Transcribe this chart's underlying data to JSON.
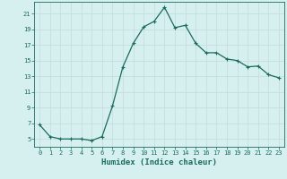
{
  "x": [
    0,
    1,
    2,
    3,
    4,
    5,
    6,
    7,
    8,
    9,
    10,
    11,
    12,
    13,
    14,
    15,
    16,
    17,
    18,
    19,
    20,
    21,
    22,
    23
  ],
  "y": [
    6.8,
    5.3,
    5.0,
    5.0,
    5.0,
    4.8,
    5.3,
    9.2,
    14.2,
    17.2,
    19.3,
    20.0,
    21.8,
    19.2,
    19.5,
    17.2,
    16.0,
    16.0,
    15.2,
    15.0,
    14.2,
    14.3,
    13.2,
    12.8
  ],
  "line_color": "#1a6b5a",
  "marker": "+",
  "marker_size": 3.0,
  "bg_color": "#d6f0f0",
  "grid_color": "#c8dede",
  "xlabel": "Humidex (Indice chaleur)",
  "ylabel_ticks": [
    5,
    7,
    9,
    11,
    13,
    15,
    17,
    19,
    21
  ],
  "xlim": [
    -0.5,
    23.5
  ],
  "ylim": [
    4.0,
    22.5
  ],
  "xticks": [
    0,
    1,
    2,
    3,
    4,
    5,
    6,
    7,
    8,
    9,
    10,
    11,
    12,
    13,
    14,
    15,
    16,
    17,
    18,
    19,
    20,
    21,
    22,
    23
  ],
  "xtick_labels": [
    "0",
    "1",
    "2",
    "3",
    "4",
    "5",
    "6",
    "7",
    "8",
    "9",
    "10",
    "11",
    "12",
    "13",
    "14",
    "15",
    "16",
    "17",
    "18",
    "19",
    "20",
    "21",
    "22",
    "23"
  ],
  "tick_fontsize": 5.0,
  "xlabel_fontsize": 6.5,
  "linewidth": 0.9
}
